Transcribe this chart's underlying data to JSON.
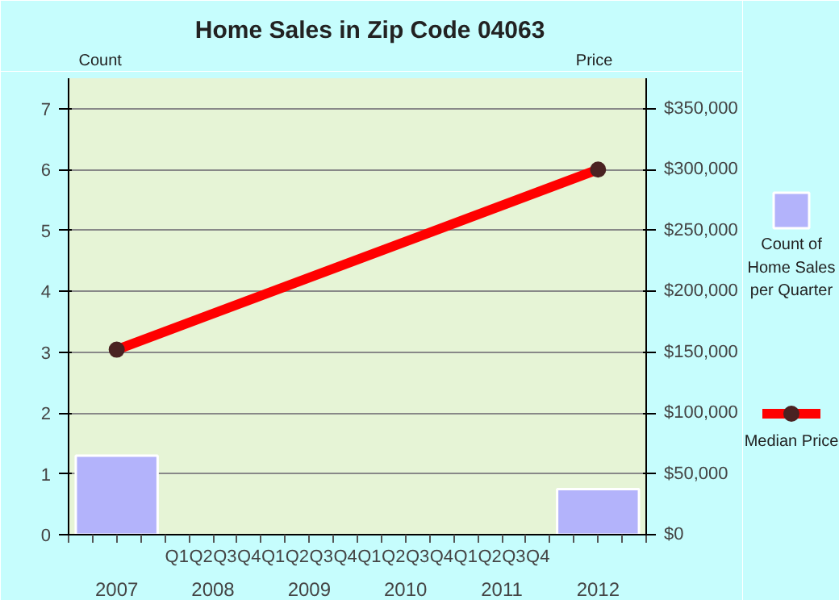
{
  "chart_data": {
    "type": "bar",
    "title": "Home Sales in Zip Code 04063",
    "ylabel": "Count",
    "y2label": "Price",
    "categories": [
      "2007",
      "2008",
      "2009",
      "2010",
      "2011",
      "2012"
    ],
    "annotations": [
      "Q1",
      "Q2",
      "Q3",
      "Q4",
      "Q1",
      "Q2",
      "Q3",
      "Q4",
      "Q1",
      "Q2",
      "Q3",
      "Q4",
      "Q1",
      "Q2",
      "Q3",
      "Q4"
    ],
    "series": [
      {
        "name": "Count of Home Sales per Quarter",
        "color": "#b3b3fb",
        "values": [
          1.3,
          null,
          null,
          null,
          null,
          0.75
        ]
      },
      {
        "name": "Median Price",
        "type": "line",
        "axis": "y2",
        "color": "#ff0000",
        "values": [
          152000,
          null,
          null,
          null,
          null,
          300000
        ]
      }
    ],
    "ylim": [
      0,
      7.5
    ],
    "yticks": [
      0,
      1,
      2,
      3,
      4,
      5,
      6,
      7
    ],
    "y2lim": [
      0,
      375000
    ],
    "y2ticks": [
      {
        "value": 0,
        "label": "$0"
      },
      {
        "value": 50000,
        "label": "$50,000"
      },
      {
        "value": 100000,
        "label": "$100,000"
      },
      {
        "value": 150000,
        "label": "$150,000"
      },
      {
        "value": 200000,
        "label": "$200,000"
      },
      {
        "value": 250000,
        "label": "$250,000"
      },
      {
        "value": 300000,
        "label": "$300,000"
      },
      {
        "value": 350000,
        "label": "$350,000"
      }
    ],
    "grid": "y",
    "legend": "right",
    "marker": "circle",
    "line_style": "solid"
  }
}
